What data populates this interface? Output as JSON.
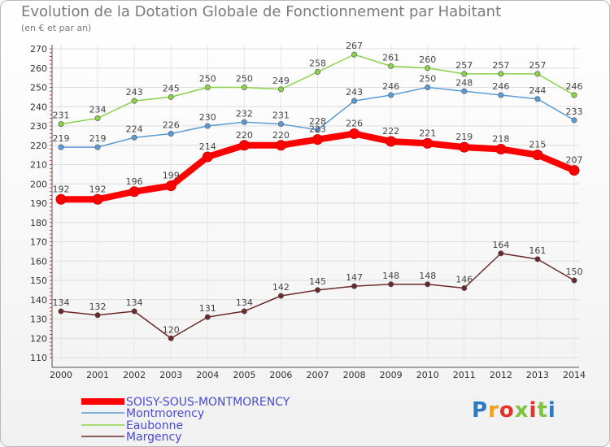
{
  "chart_data": {
    "type": "line",
    "title": "Evolution de la Dotation Globale de Fonctionnement par Habitant",
    "subtitle": "(en € et par an)",
    "xlabel": "",
    "ylabel": "",
    "x": [
      2000,
      2001,
      2002,
      2003,
      2004,
      2005,
      2006,
      2007,
      2008,
      2009,
      2010,
      2011,
      2012,
      2013,
      2014
    ],
    "ylim": [
      110,
      270
    ],
    "yticks": [
      110,
      120,
      130,
      140,
      150,
      160,
      170,
      180,
      190,
      200,
      210,
      220,
      230,
      240,
      250,
      260,
      270
    ],
    "grid": true,
    "series": [
      {
        "name": "SOISY-SOUS-MONTMORENCY",
        "color": "#ff0000",
        "values": [
          192,
          192,
          196,
          199,
          214,
          220,
          220,
          223,
          226,
          222,
          221,
          219,
          218,
          215,
          207
        ]
      },
      {
        "name": "Montmorency",
        "color": "#5b9bd5",
        "values": [
          219,
          219,
          224,
          226,
          230,
          232,
          231,
          228,
          243,
          246,
          250,
          248,
          246,
          244,
          233
        ]
      },
      {
        "name": "Eaubonne",
        "color": "#8bd14b",
        "values": [
          231,
          234,
          243,
          245,
          250,
          250,
          249,
          258,
          267,
          261,
          260,
          257,
          257,
          257,
          246
        ]
      },
      {
        "name": "Margency",
        "color": "#6b2a2a",
        "values": [
          134,
          132,
          134,
          120,
          131,
          134,
          142,
          145,
          147,
          148,
          148,
          146,
          164,
          161,
          150
        ]
      }
    ]
  },
  "brand": {
    "letters": [
      "P",
      "r",
      "o",
      "x",
      "i",
      "t",
      "i"
    ],
    "colors": [
      "#2f78c4",
      "#f0a020",
      "#e6302a",
      "#7cc43b",
      "#e6302a",
      "#7cc43b",
      "#2f78c4"
    ]
  }
}
